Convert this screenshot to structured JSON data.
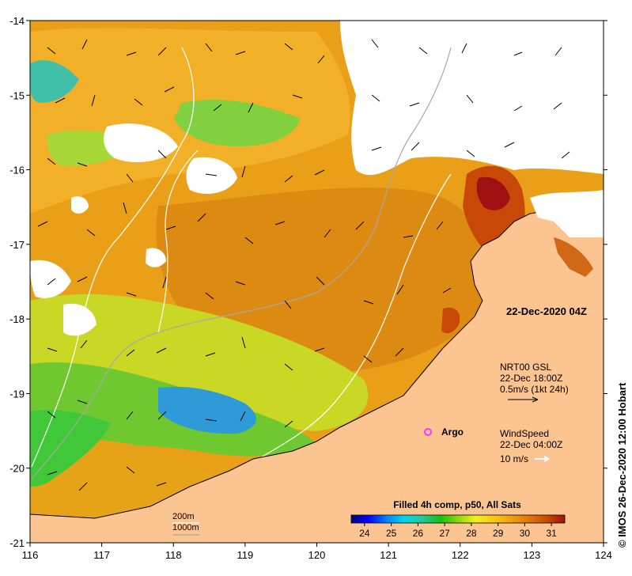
{
  "map": {
    "x_ticks": [
      "116",
      "117",
      "118",
      "119",
      "120",
      "121",
      "122",
      "123",
      "124"
    ],
    "y_ticks": [
      "-14",
      "-15",
      "-16",
      "-17",
      "-18",
      "-19",
      "-20",
      "-21"
    ],
    "lon_range": [
      116,
      124
    ],
    "lat_range": [
      -21,
      -14
    ],
    "date_label": "22-Dec-2020 04Z",
    "current_legend": {
      "title": "NRT00 GSL",
      "time": "22-Dec 18:00Z",
      "scale": "0.5m/s (1kt 24h)"
    },
    "wind_legend": {
      "title": "WindSpeed",
      "time": "22-Dec 04:00Z",
      "scale": "10 m/s"
    },
    "argo": {
      "label": "Argo",
      "lon": 121.6,
      "lat": -19.5,
      "color": "#ff33ff"
    },
    "isobaths": {
      "label_200": "200m",
      "label_1000": "1000m"
    },
    "credit": "© IMOS 26-Dec-2020 12:00 Hobart",
    "colorbar": {
      "title": "Filled 4h comp, p50, All Sats",
      "ticks": [
        "24",
        "25",
        "26",
        "27",
        "28",
        "29",
        "30",
        "31"
      ],
      "tick_values": [
        24,
        25,
        26,
        27,
        28,
        29,
        30,
        31
      ],
      "range": [
        23.5,
        31.5
      ],
      "colors": [
        "#00007a",
        "#0000ff",
        "#0088ff",
        "#00d8e8",
        "#20c8a0",
        "#18c010",
        "#8cd810",
        "#f0f020",
        "#f8c818",
        "#f0a010",
        "#e07808",
        "#c84808",
        "#a01010"
      ]
    },
    "land_color": "#fcc490",
    "nodata_color": "#ffffff"
  }
}
